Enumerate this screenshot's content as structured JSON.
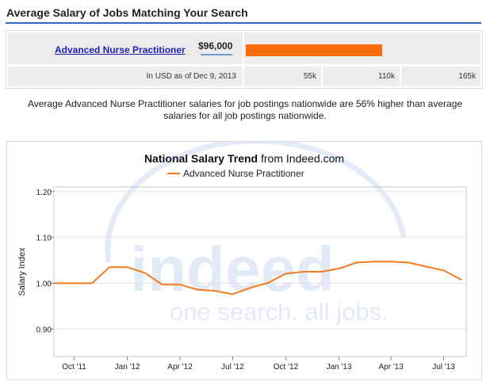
{
  "header": {
    "title": "Average Salary of Jobs Matching Your Search"
  },
  "salary_box": {
    "job_title": "Advanced Nurse Practitioner",
    "amount": "$96,000",
    "footnote": "In USD as of Dec 9, 2013",
    "scale_labels": [
      "55k",
      "110k",
      "165k"
    ],
    "bar_value": 96000,
    "bar_scale_max": 165000,
    "bar_color": "#f96d0b"
  },
  "description": "Average Advanced Nurse Practitioner salaries for job postings nationwide are 56% higher than average salaries for all job postings nationwide.",
  "trend_box": {
    "title_bold": "National Salary Trend",
    "title_rest": " from Indeed.com",
    "watermark_logo": "indeed",
    "watermark_tagline": "one search. all jobs."
  },
  "chart_data": {
    "type": "line",
    "xlabel": "",
    "ylabel": "Salary Index",
    "ylim": [
      0.84,
      1.21
    ],
    "yticks": [
      0.9,
      1.0,
      1.1,
      1.2
    ],
    "ytick_labels": [
      "0.90",
      "1.00",
      "1.10",
      "1.20"
    ],
    "xlim": [
      "2011-08-27",
      "2013-08-09"
    ],
    "xticks": [
      "2011-10-01",
      "2012-01-01",
      "2012-04-01",
      "2012-07-01",
      "2012-10-01",
      "2013-01-01",
      "2013-04-01",
      "2013-07-01"
    ],
    "xtick_labels": [
      "Oct '11",
      "Jan '12",
      "Apr '12",
      "Jul '12",
      "Oct '12",
      "Jan '13",
      "Apr '13",
      "Jul '13"
    ],
    "grid": "horizontal",
    "legend_position": "top",
    "line_color": "#f47b20",
    "series": [
      {
        "name": "Advanced Nurse Practitioner",
        "x": [
          "2011-09-01",
          "2011-10-01",
          "2011-11-01",
          "2011-12-01",
          "2012-01-01",
          "2012-02-01",
          "2012-03-01",
          "2012-04-01",
          "2012-05-01",
          "2012-06-01",
          "2012-07-01",
          "2012-08-01",
          "2012-09-01",
          "2012-10-01",
          "2012-11-01",
          "2012-12-01",
          "2013-01-01",
          "2013-02-01",
          "2013-03-01",
          "2013-04-01",
          "2013-05-01",
          "2013-06-01",
          "2013-07-01",
          "2013-08-01"
        ],
        "y": [
          1.0,
          1.0,
          1.0,
          1.035,
          1.035,
          1.022,
          0.997,
          0.997,
          0.986,
          0.983,
          0.976,
          0.99,
          1.001,
          1.021,
          1.025,
          1.025,
          1.032,
          1.045,
          1.047,
          1.047,
          1.045,
          1.036,
          1.028,
          1.007
        ]
      }
    ]
  }
}
